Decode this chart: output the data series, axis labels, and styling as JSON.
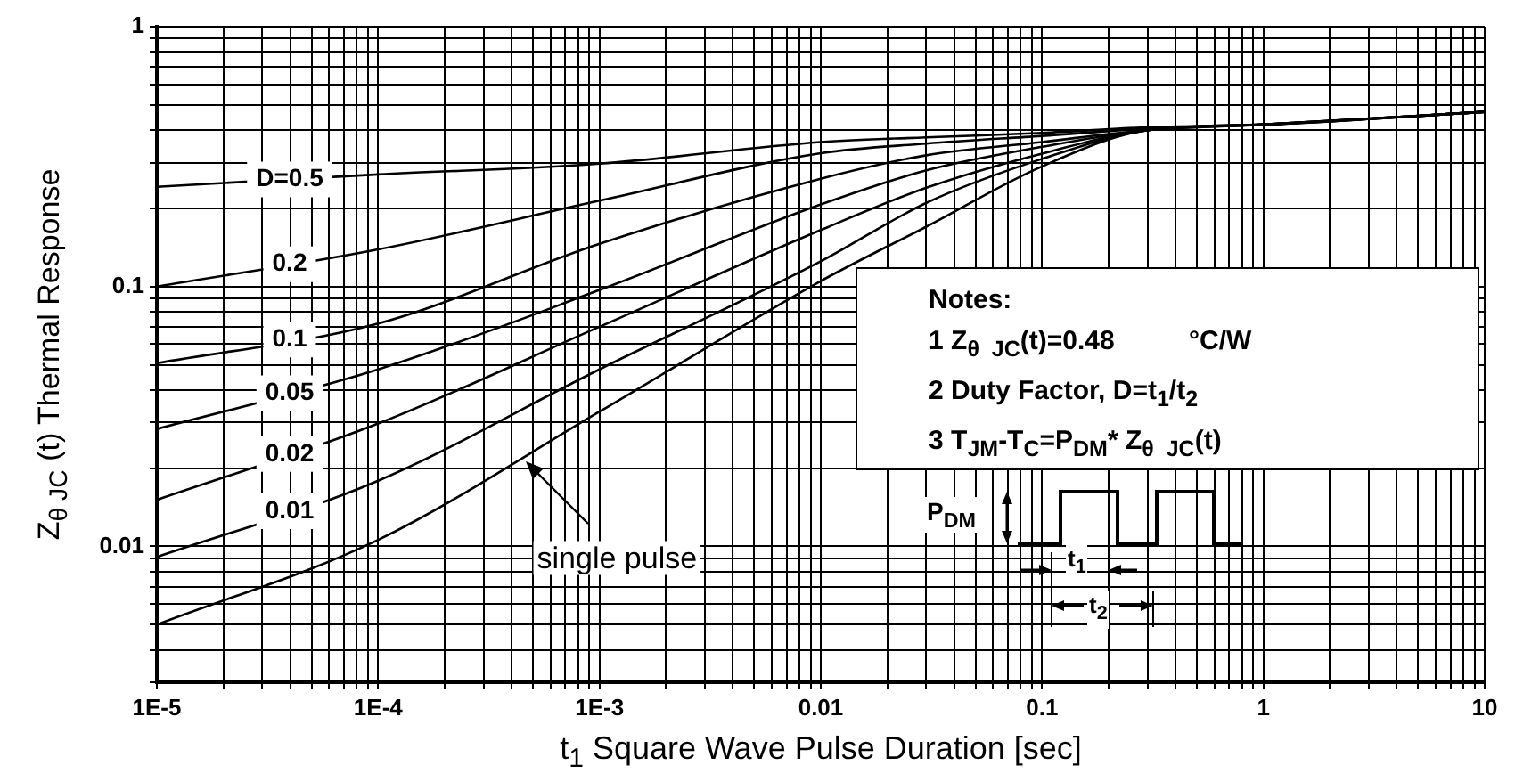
{
  "chart_data": {
    "type": "line",
    "xlabel": "t$_{1}$ Square Wave Pulse Duration [sec]",
    "ylabel": "Z$_{θ JC}$ (t) Thermal Response",
    "x": [
      1e-05,
      0.0001,
      0.001,
      0.01,
      0.03,
      0.1,
      0.3,
      1,
      10
    ],
    "series": [
      {
        "name": "D=0.5",
        "color": "#000000",
        "values": [
          0.242,
          0.27,
          0.297,
          0.36,
          0.375,
          0.39,
          0.41,
          0.42,
          0.47
        ]
      },
      {
        "name": "0.2",
        "color": "#000000",
        "values": [
          0.1,
          0.139,
          0.214,
          0.326,
          0.355,
          0.38,
          0.405,
          0.42,
          0.47
        ]
      },
      {
        "name": "0.1",
        "color": "#000000",
        "values": [
          0.0507,
          0.072,
          0.146,
          0.26,
          0.32,
          0.36,
          0.4,
          0.42,
          0.47
        ]
      },
      {
        "name": "0.05",
        "color": "#000000",
        "values": [
          0.0283,
          0.048,
          0.097,
          0.207,
          0.28,
          0.345,
          0.4,
          0.42,
          0.47
        ]
      },
      {
        "name": "0.02",
        "color": "#000000",
        "values": [
          0.0151,
          0.0297,
          0.07,
          0.165,
          0.24,
          0.325,
          0.4,
          0.42,
          0.47
        ]
      },
      {
        "name": "0.01",
        "color": "#000000",
        "values": [
          0.0091,
          0.0179,
          0.048,
          0.125,
          0.21,
          0.31,
          0.4,
          0.42,
          0.47
        ]
      },
      {
        "color": "#000000",
        "values": [
          0.005,
          0.0106,
          0.033,
          0.105,
          0.17,
          0.29,
          0.4,
          0.42,
          0.47
        ]
      }
    ],
    "xlim": [
      1e-05,
      10
    ],
    "ylim": [
      0.003,
      1
    ],
    "xticks": [
      {
        "value": 1e-05,
        "label": "1E-5"
      },
      {
        "value": 2e-05,
        "label": null
      },
      {
        "value": 3e-05,
        "label": null
      },
      {
        "value": 4e-05,
        "label": null
      },
      {
        "value": 5e-05,
        "label": null
      },
      {
        "value": 6e-05,
        "label": null
      },
      {
        "value": 7e-05,
        "label": null
      },
      {
        "value": 8e-05,
        "label": null
      },
      {
        "value": 9e-05,
        "label": null
      },
      {
        "value": 0.0001,
        "label": "1E-4"
      },
      {
        "value": 0.0002,
        "label": null
      },
      {
        "value": 0.0003,
        "label": null
      },
      {
        "value": 0.0004,
        "label": null
      },
      {
        "value": 0.0005,
        "label": null
      },
      {
        "value": 0.0006,
        "label": null
      },
      {
        "value": 0.0007,
        "label": null
      },
      {
        "value": 0.0008,
        "label": null
      },
      {
        "value": 0.0009,
        "label": null
      },
      {
        "value": 0.001,
        "label": "1E-3"
      },
      {
        "value": 0.002,
        "label": null
      },
      {
        "value": 0.003,
        "label": null
      },
      {
        "value": 0.004,
        "label": null
      },
      {
        "value": 0.005,
        "label": null
      },
      {
        "value": 0.006,
        "label": null
      },
      {
        "value": 0.007,
        "label": null
      },
      {
        "value": 0.008,
        "label": null
      },
      {
        "value": 0.009,
        "label": null
      },
      0.01,
      {
        "value": 0.02,
        "label": null
      },
      {
        "value": 0.03,
        "label": null
      },
      {
        "value": 0.04,
        "label": null
      },
      {
        "value": 0.05,
        "label": null
      },
      {
        "value": 0.06,
        "label": null
      },
      {
        "value": 0.07,
        "label": null
      },
      {
        "value": 0.08,
        "label": null
      },
      {
        "value": 0.09,
        "label": null
      },
      0.1,
      {
        "value": 0.2,
        "label": null
      },
      {
        "value": 0.3,
        "label": null
      },
      {
        "value": 0.4,
        "label": null
      },
      {
        "value": 0.5,
        "label": null
      },
      {
        "value": 0.6,
        "label": null
      },
      {
        "value": 0.7,
        "label": null
      },
      {
        "value": 0.8,
        "label": null
      },
      {
        "value": 0.9,
        "label": null
      },
      1,
      {
        "value": 2,
        "label": null
      },
      {
        "value": 3,
        "label": null
      },
      {
        "value": 4,
        "label": null
      },
      {
        "value": 5,
        "label": null
      },
      {
        "value": 6,
        "label": null
      },
      {
        "value": 7,
        "label": null
      },
      {
        "value": 8,
        "label": null
      },
      {
        "value": 9,
        "label": null
      },
      10
    ],
    "yticks": [
      {
        "value": 0.003,
        "label": null
      },
      {
        "value": 0.004,
        "label": null
      },
      {
        "value": 0.005,
        "label": null
      },
      {
        "value": 0.006,
        "label": null
      },
      {
        "value": 0.007,
        "label": null
      },
      {
        "value": 0.008,
        "label": null
      },
      {
        "value": 0.009,
        "label": null
      },
      0.01,
      {
        "value": 0.02,
        "label": null
      },
      {
        "value": 0.03,
        "label": null
      },
      {
        "value": 0.04,
        "label": null
      },
      {
        "value": 0.05,
        "label": null
      },
      {
        "value": 0.06,
        "label": null
      },
      {
        "value": 0.07,
        "label": null
      },
      {
        "value": 0.08,
        "label": null
      },
      {
        "value": 0.09,
        "label": null
      },
      0.1,
      {
        "value": 0.2,
        "label": null
      },
      {
        "value": 0.3,
        "label": null
      },
      {
        "value": 0.4,
        "label": null
      },
      {
        "value": 0.5,
        "label": null
      },
      {
        "value": 0.6,
        "label": null
      },
      {
        "value": 0.7,
        "label": null
      },
      {
        "value": 0.8,
        "label": null
      },
      {
        "value": 0.9,
        "label": null
      },
      1
    ],
    "log": "xy",
    "grid": true,
    "legend": false,
    "marker": "none",
    "line_style": "solid",
    "annotations": [
      "Notes:",
      "1 Z$_{θ  JC}$(t)=0.48          °C/W",
      "2 Duty Factor, D=t$_{1}$/t$_{2}$",
      "3 T$_{JM}$-T$_{C}$=P$_{DM}$* Z$_{θ  JC}$(t)",
      "P$_{DM}$",
      "t$_{1}$",
      "t$_{2}$",
      {
        "text": "single pulse",
        "x": 0.00045,
        "y": 0.022
      }
    ]
  }
}
